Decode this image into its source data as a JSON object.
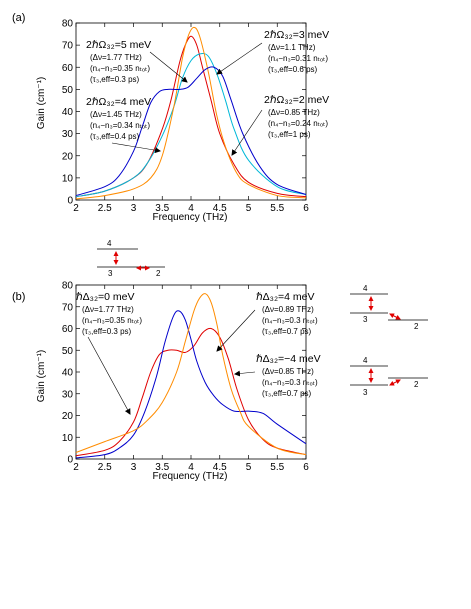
{
  "chart_data": [
    {
      "panel": "(a)",
      "type": "line",
      "xlabel": "Frequency (THz)",
      "ylabel": "Gain (cm⁻¹)",
      "xlim": [
        2,
        6
      ],
      "ylim": [
        0,
        80
      ],
      "xticks": [
        "2",
        "2.5",
        "3",
        "3.5",
        "4",
        "4.5",
        "5",
        "5.5",
        "6"
      ],
      "yticks": [
        "0",
        "10",
        "20",
        "30",
        "40",
        "50",
        "60",
        "70",
        "80"
      ],
      "series": [
        {
          "color": "#e00000",
          "x": [
            2,
            2.5,
            3,
            3.25,
            3.5,
            3.65,
            3.8,
            3.9,
            4.0,
            4.1,
            4.2,
            4.35,
            4.5,
            4.75,
            5,
            5.5,
            6
          ],
          "y": [
            1.5,
            4,
            10,
            17,
            32,
            45,
            62,
            70,
            74,
            70,
            60,
            45,
            30,
            16,
            8,
            3,
            1.5
          ]
        },
        {
          "color": "#00b8d8",
          "x": [
            2,
            2.5,
            3,
            3.25,
            3.5,
            3.7,
            3.85,
            4.0,
            4.15,
            4.3,
            4.45,
            4.6,
            4.75,
            5,
            5.5,
            6
          ],
          "y": [
            1.5,
            4,
            10,
            17,
            29,
            42,
            55,
            63,
            66,
            65,
            57,
            45,
            32,
            18,
            6,
            2.5
          ]
        },
        {
          "color": "#ff8c00",
          "x": [
            2,
            2.5,
            3,
            3.3,
            3.5,
            3.7,
            3.85,
            3.95,
            4.05,
            4.15,
            4.3,
            4.45,
            4.6,
            4.8,
            5,
            5.5,
            6
          ],
          "y": [
            0.5,
            2,
            5,
            10,
            20,
            42,
            64,
            74,
            78,
            74,
            58,
            38,
            24,
            12,
            7,
            2,
            1
          ]
        },
        {
          "color": "#0000cc",
          "x": [
            2,
            2.5,
            2.75,
            3,
            3.15,
            3.3,
            3.45,
            3.6,
            3.8,
            3.95,
            4.1,
            4.25,
            4.4,
            4.55,
            4.7,
            4.9,
            5.2,
            5.5,
            6
          ],
          "y": [
            2,
            6,
            11,
            22,
            33,
            44,
            49,
            50,
            50,
            51,
            55,
            59,
            60,
            56,
            45,
            30,
            15,
            7,
            2.5
          ]
        }
      ],
      "annotations": [
        {
          "label": "2ℏΩ₃₂=5 meV",
          "lines": [
            "(Δν=1.77 THz)",
            "(n₄−n₃=0.35 nₜₒₜ)",
            "(τ₃,eff=0.3 ps)"
          ]
        },
        {
          "label": "2ℏΩ₃₂=4 meV",
          "lines": [
            "(Δν=1.45 THz)",
            "(n₄−n₃=0.34 nₜₒₜ)",
            "(τ₃,eff=0.4 ps)"
          ]
        },
        {
          "label": "2ℏΩ₃₂=3 meV",
          "lines": [
            "(Δν=1.1 THz)",
            "(n₄−n₃=0.31 nₜₒₜ)",
            "(τ₃,eff=0.6 ps)"
          ]
        },
        {
          "label": "2ℏΩ₃₂=2 meV",
          "lines": [
            "(Δν=0.85 THz)",
            "(n₄−n₃=0.24 nₜₒₜ)",
            "(τ₃,eff=1 ps)"
          ]
        }
      ]
    },
    {
      "panel": "(b)",
      "type": "line",
      "xlabel": "Frequency (THz)",
      "ylabel": "Gain (cm⁻¹)",
      "xlim": [
        2,
        6
      ],
      "ylim": [
        0,
        80
      ],
      "xticks": [
        "2",
        "2.5",
        "3",
        "3.5",
        "4",
        "4.5",
        "5",
        "5.5",
        "6"
      ],
      "yticks": [
        "0",
        "10",
        "20",
        "30",
        "40",
        "50",
        "60",
        "70",
        "80"
      ],
      "series": [
        {
          "color": "#e00000",
          "x": [
            2,
            2.5,
            2.75,
            3,
            3.15,
            3.3,
            3.45,
            3.6,
            3.75,
            3.9,
            4.05,
            4.2,
            4.35,
            4.5,
            4.65,
            4.8,
            5,
            5.25,
            5.5,
            6
          ],
          "y": [
            1.5,
            4,
            8,
            17,
            28,
            40,
            48,
            50,
            50,
            49,
            52,
            58,
            60,
            56,
            46,
            32,
            18,
            9,
            5,
            2
          ]
        },
        {
          "color": "#0000cc",
          "x": [
            2,
            2.5,
            2.75,
            3,
            3.2,
            3.4,
            3.55,
            3.7,
            3.8,
            3.9,
            4.0,
            4.1,
            4.25,
            4.4,
            4.55,
            4.75,
            5.0,
            5.25,
            5.5,
            6
          ],
          "y": [
            0.5,
            2,
            5,
            11,
            22,
            38,
            54,
            66,
            68,
            64,
            55,
            45,
            35,
            29,
            25,
            22,
            22,
            21,
            16,
            7
          ]
        },
        {
          "color": "#ff8c00",
          "x": [
            2,
            2.5,
            3,
            3.25,
            3.5,
            3.75,
            3.9,
            4.05,
            4.15,
            4.25,
            4.35,
            4.45,
            4.55,
            4.7,
            4.85,
            5,
            5.5,
            6
          ],
          "y": [
            3,
            8,
            13,
            18,
            26,
            40,
            54,
            68,
            74,
            76,
            72,
            62,
            48,
            32,
            22,
            15,
            5,
            2
          ]
        }
      ],
      "annotations": [
        {
          "label": "ℏΔ₃₂=0 meV",
          "lines": [
            "(Δν=1.77 THz)",
            "(n₄−n₃=0.35 nₜₒₜ)",
            "(τ₃,eff=0.3 ps)"
          ]
        },
        {
          "label": "ℏΔ₃₂=4 meV",
          "lines": [
            "(Δν=0.89 THz)",
            "(n₄−n₃=0.3 nₜₒₜ)",
            "(τ₃,eff=0.7 ps)"
          ]
        },
        {
          "label": "ℏΔ₃₂=−4 meV",
          "lines": [
            "(Δν=0.85 THz)",
            "(n₄−n₃=0.3 nₜₒₜ)",
            "(τ₃,eff=0.7 ps)"
          ]
        }
      ]
    }
  ],
  "level_diagrams": [
    {
      "upper": "4",
      "left": "3",
      "right": "2"
    },
    {
      "upper": "4",
      "left": "3",
      "right": "2"
    },
    {
      "upper": "4",
      "left": "3",
      "right": "2"
    }
  ]
}
